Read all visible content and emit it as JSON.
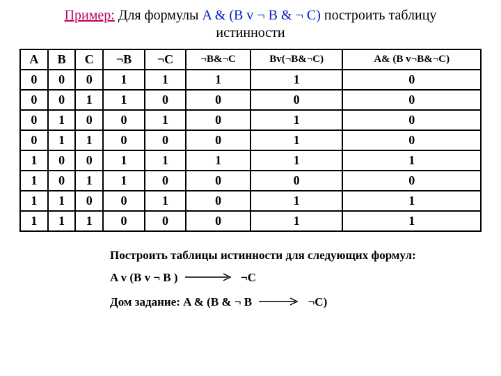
{
  "colors": {
    "primer": "#c00060",
    "formula": "#0020c0",
    "text": "#000000",
    "border": "#000000",
    "background": "#ffffff"
  },
  "title": {
    "primer_label": "Пример:",
    "part1": " Для формулы  ",
    "formula": "A & (B v ¬ B & ¬ C)",
    "part2": "  построить таблицу",
    "line2": "истинности"
  },
  "table": {
    "col_widths": [
      "6%",
      "6%",
      "6%",
      "9%",
      "9%",
      "14%",
      "20%",
      "30%"
    ],
    "headers": [
      "A",
      "B",
      "C",
      "¬B",
      "¬C",
      "¬B&¬C",
      "Bv(¬B&¬C)",
      "A& (B v¬B&¬C)"
    ],
    "header_fontsize": 18,
    "cell_fontsize": 18,
    "font_weight": "bold",
    "rows": [
      [
        "0",
        "0",
        "0",
        "1",
        "1",
        "1",
        "1",
        "0"
      ],
      [
        "0",
        "0",
        "1",
        "1",
        "0",
        "0",
        "0",
        "0"
      ],
      [
        "0",
        "1",
        "0",
        "0",
        "1",
        "0",
        "1",
        "0"
      ],
      [
        "0",
        "1",
        "1",
        "0",
        "0",
        "0",
        "1",
        "0"
      ],
      [
        "1",
        "0",
        "0",
        "1",
        "1",
        "1",
        "1",
        "1"
      ],
      [
        "1",
        "0",
        "1",
        "1",
        "0",
        "0",
        "0",
        "0"
      ],
      [
        "1",
        "1",
        "0",
        "0",
        "1",
        "0",
        "1",
        "1"
      ],
      [
        "1",
        "1",
        "1",
        "0",
        "0",
        "0",
        "1",
        "1"
      ]
    ]
  },
  "below": {
    "line1": "Построить таблицы истинности для следующих формул:",
    "line2_left": "A v (B v ¬ B )",
    "line2_right": "¬C",
    "line3_left": "Дом задание: A & (B & ¬ B",
    "line3_right": "¬C)",
    "arrow_color": "#000000",
    "arrow_length": 60
  }
}
